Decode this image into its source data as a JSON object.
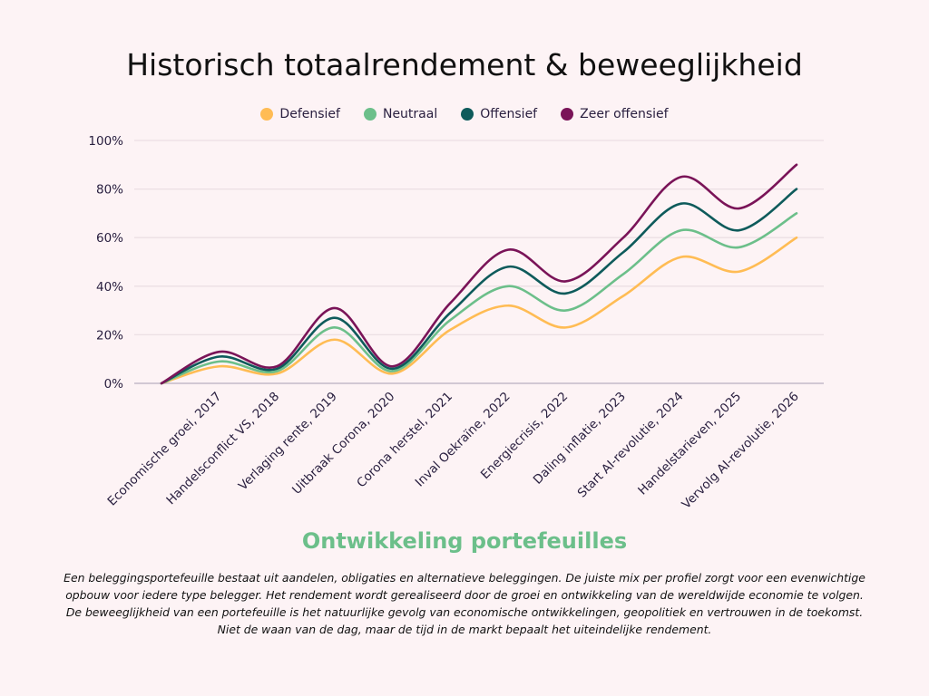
{
  "chart_data": {
    "type": "line",
    "title": "Historisch totaalrendement & beweeglijkheid",
    "xlabel": "Ontwikkeling portefeuilles",
    "ylabel": "",
    "categories": [
      "",
      "Economische groei, 2017",
      "Handelsconflict VS, 2018",
      "Verlaging rente, 2019",
      "Uitbraak Corona, 2020",
      "Corona herstel, 2021",
      "Inval Oekraïne, 2022",
      "Energiecrisis, 2022",
      "Daling inflatie, 2023",
      "Start AI-revolutie, 2024",
      "Handelstarieven, 2025",
      "Vervolg AI-revolutie, 2026"
    ],
    "ylim": [
      0,
      100
    ],
    "yticks": [
      "0%",
      "20%",
      "40%",
      "60%",
      "80%",
      "100%"
    ],
    "grid": true,
    "legend_position": "top",
    "series": [
      {
        "name": "Defensief",
        "color": "#ffbc54",
        "values": [
          0,
          7,
          4,
          18,
          4,
          22,
          32,
          23,
          36,
          52,
          46,
          60
        ]
      },
      {
        "name": "Neutraal",
        "color": "#6cbf8a",
        "values": [
          0,
          9,
          5,
          23,
          5,
          26,
          40,
          30,
          45,
          63,
          56,
          70
        ]
      },
      {
        "name": "Offensief",
        "color": "#0e5b5b",
        "values": [
          0,
          11,
          6,
          27,
          6,
          29,
          48,
          37,
          54,
          74,
          63,
          80
        ]
      },
      {
        "name": "Zeer offensief",
        "color": "#7a1458",
        "values": [
          0,
          13,
          7,
          31,
          7,
          33,
          55,
          42,
          60,
          85,
          72,
          90
        ]
      }
    ]
  },
  "description": "Een beleggingsportefeuille bestaat uit aandelen, obligaties en alternatieve beleggingen. De juiste mix per profiel zorgt voor een evenwichtige opbouw voor iedere type belegger. Het rendement wordt gerealiseerd door de groei en ontwikkeling van de wereldwijde economie te volgen. De beweeglijkheid van een portefeuille is het natuurlijke gevolg van economische ontwikkelingen, geopolitiek en vertrouwen in de toekomst. Niet de waan van de dag, maar de tijd in de markt bepaalt het uiteindelijke rendement."
}
